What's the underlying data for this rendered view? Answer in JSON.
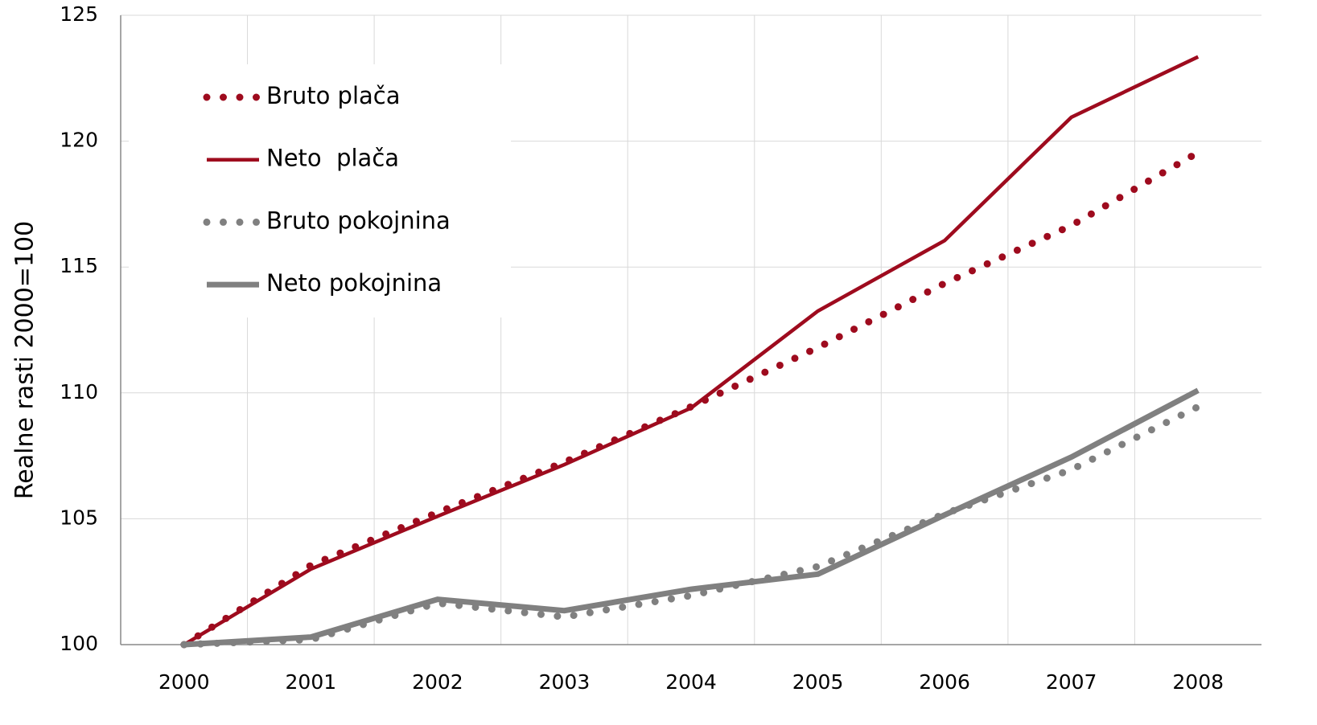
{
  "chart_data": {
    "type": "line",
    "y_label": "Realne rasti 2000=100",
    "categories": [
      "2000",
      "2001",
      "2002",
      "2003",
      "2004",
      "2005",
      "2006",
      "2007",
      "2008"
    ],
    "series": [
      {
        "name": "Bruto plača",
        "color": "#9e0b1e",
        "line_style": "dotted",
        "values": [
          100,
          103.15,
          105.25,
          107.25,
          109.45,
          111.8,
          114.35,
          116.65,
          119.55
        ]
      },
      {
        "name": "Neto  plača",
        "color": "#9e0b1e",
        "line_style": "solid",
        "values": [
          100,
          103.0,
          105.1,
          107.15,
          109.4,
          113.25,
          116.05,
          120.95,
          123.35
        ]
      },
      {
        "name": "Bruto pokojnina",
        "color": "#808080",
        "line_style": "dotted",
        "values": [
          100,
          100.2,
          101.65,
          101.1,
          101.95,
          103.1,
          105.2,
          106.95,
          109.45
        ]
      },
      {
        "name": "Neto pokojnina",
        "color": "#808080",
        "line_style": "solid",
        "values": [
          100,
          100.3,
          101.8,
          101.35,
          102.2,
          102.8,
          105.15,
          107.45,
          110.1
        ]
      }
    ],
    "ylim": [
      100,
      125
    ],
    "yticks": [
      100,
      105,
      110,
      115,
      120,
      125
    ],
    "grid": true,
    "legend": "upper left"
  }
}
